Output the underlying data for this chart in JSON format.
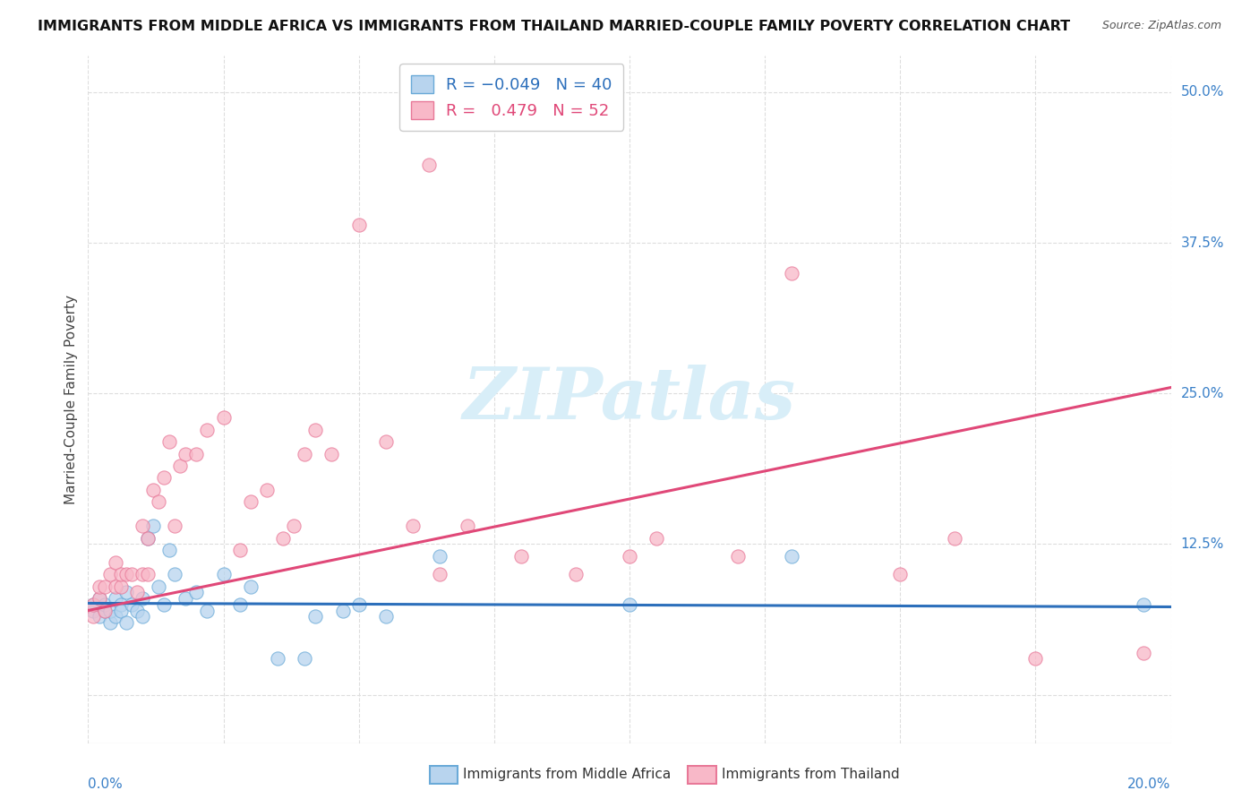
{
  "title": "IMMIGRANTS FROM MIDDLE AFRICA VS IMMIGRANTS FROM THAILAND MARRIED-COUPLE FAMILY POVERTY CORRELATION CHART",
  "source": "Source: ZipAtlas.com",
  "ylabel": "Married-Couple Family Poverty",
  "xlim": [
    0.0,
    0.2
  ],
  "ylim": [
    -0.04,
    0.53
  ],
  "ytick_vals": [
    0.0,
    0.125,
    0.25,
    0.375,
    0.5
  ],
  "ytick_labels": [
    "",
    "12.5%",
    "25.0%",
    "37.5%",
    "50.0%"
  ],
  "color_blue_fill": "#b8d4ee",
  "color_blue_edge": "#6aaad8",
  "color_pink_fill": "#f8b8c8",
  "color_pink_edge": "#e87898",
  "line_color_blue": "#2c6fbb",
  "line_color_pink": "#e04878",
  "grid_color": "#dddddd",
  "watermark_color": "#d8eef8",
  "blue_x": [
    0.001,
    0.001,
    0.002,
    0.002,
    0.003,
    0.003,
    0.004,
    0.004,
    0.005,
    0.005,
    0.006,
    0.006,
    0.007,
    0.007,
    0.008,
    0.009,
    0.01,
    0.01,
    0.011,
    0.012,
    0.013,
    0.014,
    0.015,
    0.016,
    0.018,
    0.02,
    0.022,
    0.025,
    0.028,
    0.03,
    0.035,
    0.04,
    0.042,
    0.047,
    0.05,
    0.055,
    0.065,
    0.1,
    0.13,
    0.195
  ],
  "blue_y": [
    0.07,
    0.075,
    0.065,
    0.08,
    0.07,
    0.075,
    0.06,
    0.07,
    0.065,
    0.08,
    0.075,
    0.07,
    0.085,
    0.06,
    0.075,
    0.07,
    0.08,
    0.065,
    0.13,
    0.14,
    0.09,
    0.075,
    0.12,
    0.1,
    0.08,
    0.085,
    0.07,
    0.1,
    0.075,
    0.09,
    0.03,
    0.03,
    0.065,
    0.07,
    0.075,
    0.065,
    0.115,
    0.075,
    0.115,
    0.075
  ],
  "pink_x": [
    0.001,
    0.001,
    0.002,
    0.002,
    0.003,
    0.003,
    0.004,
    0.005,
    0.005,
    0.006,
    0.006,
    0.007,
    0.008,
    0.009,
    0.01,
    0.01,
    0.011,
    0.011,
    0.012,
    0.013,
    0.014,
    0.015,
    0.016,
    0.017,
    0.018,
    0.02,
    0.022,
    0.025,
    0.028,
    0.03,
    0.033,
    0.036,
    0.038,
    0.04,
    0.042,
    0.045,
    0.05,
    0.055,
    0.06,
    0.063,
    0.065,
    0.07,
    0.08,
    0.09,
    0.1,
    0.105,
    0.12,
    0.13,
    0.15,
    0.16,
    0.175,
    0.195
  ],
  "pink_y": [
    0.065,
    0.075,
    0.08,
    0.09,
    0.07,
    0.09,
    0.1,
    0.09,
    0.11,
    0.09,
    0.1,
    0.1,
    0.1,
    0.085,
    0.1,
    0.14,
    0.1,
    0.13,
    0.17,
    0.16,
    0.18,
    0.21,
    0.14,
    0.19,
    0.2,
    0.2,
    0.22,
    0.23,
    0.12,
    0.16,
    0.17,
    0.13,
    0.14,
    0.2,
    0.22,
    0.2,
    0.39,
    0.21,
    0.14,
    0.44,
    0.1,
    0.14,
    0.115,
    0.1,
    0.115,
    0.13,
    0.115,
    0.35,
    0.1,
    0.13,
    0.03,
    0.035
  ],
  "blue_line_x": [
    0.0,
    0.2
  ],
  "blue_line_y": [
    0.076,
    0.073
  ],
  "pink_line_x": [
    0.0,
    0.2
  ],
  "pink_line_y": [
    0.07,
    0.255
  ]
}
